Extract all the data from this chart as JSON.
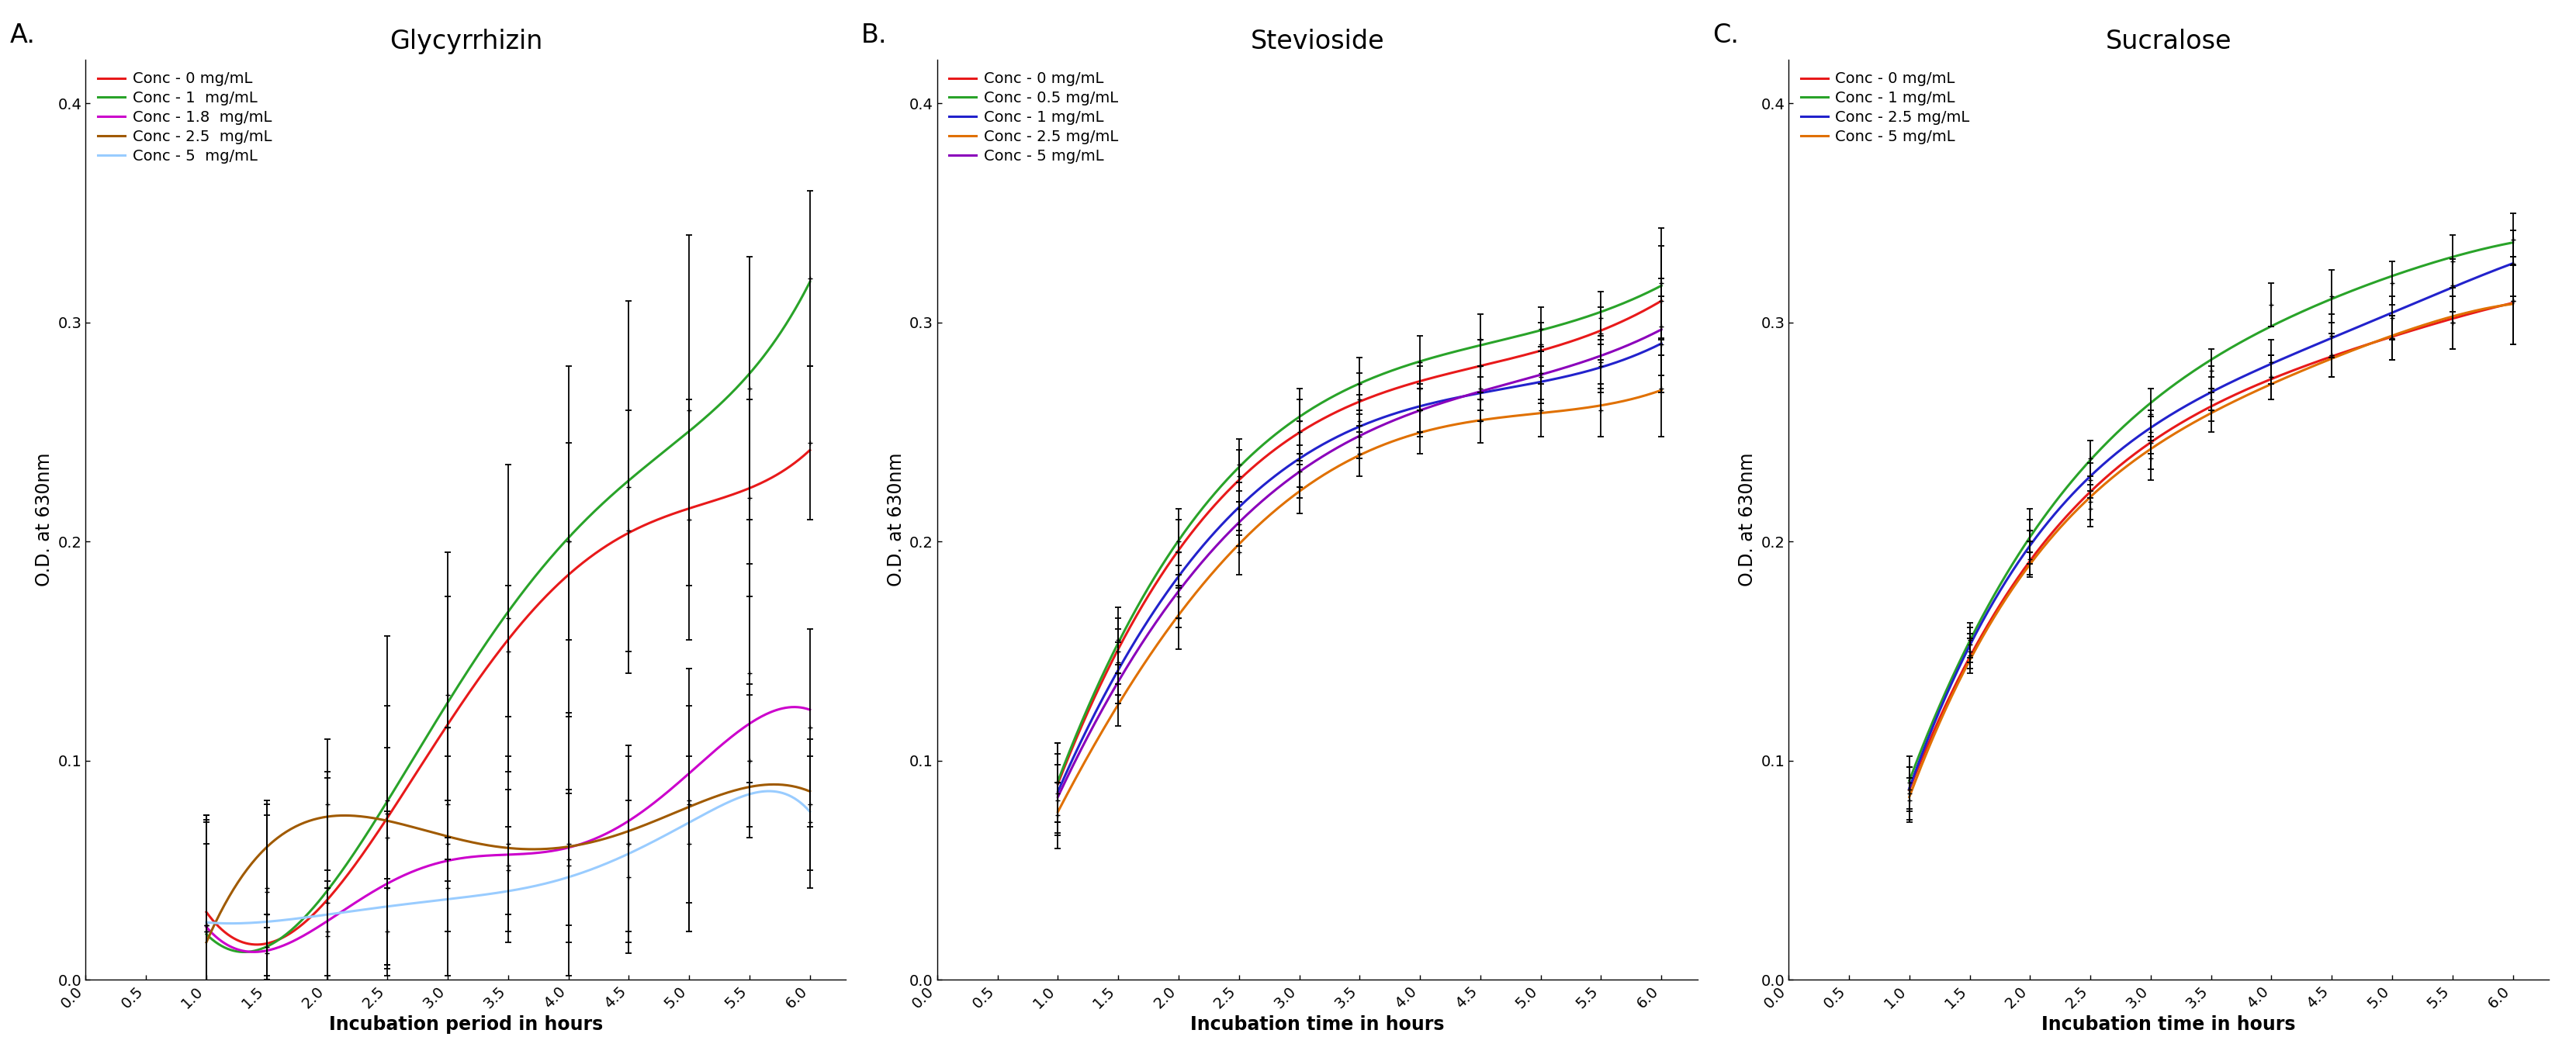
{
  "panel_A": {
    "title": "Glycyrrhizin",
    "xlabel": "Incubation period in hours",
    "ylabel": "O.D. at 630nm",
    "label": "A.",
    "x": [
      1.0,
      1.5,
      2.0,
      2.5,
      3.0,
      3.5,
      4.0,
      4.5,
      5.0,
      5.5,
      6.0
    ],
    "series": [
      {
        "label": "Conc - 0 mg/mL",
        "color": "#e8191a",
        "y": [
          0.025,
          0.03,
          0.035,
          0.065,
          0.115,
          0.15,
          0.2,
          0.205,
          0.21,
          0.22,
          0.245
        ],
        "yerr": [
          0.05,
          0.045,
          0.06,
          0.06,
          0.06,
          0.03,
          0.045,
          0.055,
          0.055,
          0.045,
          0.035
        ]
      },
      {
        "label": "Conc - 1  mg/mL",
        "color": "#29a329",
        "y": [
          0.022,
          0.012,
          0.042,
          0.082,
          0.13,
          0.165,
          0.2,
          0.225,
          0.26,
          0.27,
          0.32
        ],
        "yerr": [
          0.05,
          0.012,
          0.05,
          0.075,
          0.065,
          0.07,
          0.08,
          0.085,
          0.08,
          0.06,
          0.04
        ]
      },
      {
        "label": "Conc - 1.8  mg/mL",
        "color": "#cc00cc",
        "y": [
          0.025,
          0.015,
          0.02,
          0.042,
          0.062,
          0.062,
          0.062,
          0.062,
          0.082,
          0.14,
          0.115
        ],
        "yerr": [
          0.05,
          0.015,
          0.025,
          0.035,
          0.04,
          0.04,
          0.06,
          0.045,
          0.06,
          0.05,
          0.045
        ]
      },
      {
        "label": "Conc - 2.5  mg/mL",
        "color": "#a05a00",
        "y": [
          0.025,
          0.042,
          0.08,
          0.076,
          0.08,
          0.052,
          0.055,
          0.062,
          0.08,
          0.1,
          0.08
        ],
        "yerr": [
          0.048,
          0.04,
          0.03,
          0.03,
          0.035,
          0.035,
          0.03,
          0.04,
          0.045,
          0.03,
          0.03
        ]
      },
      {
        "label": "Conc - 5  mg/mL",
        "color": "#99ccff",
        "y": [
          0.022,
          0.04,
          0.022,
          0.022,
          0.042,
          0.05,
          0.052,
          0.047,
          0.062,
          0.1,
          0.072
        ],
        "yerr": [
          0.04,
          0.04,
          0.02,
          0.02,
          0.04,
          0.02,
          0.035,
          0.035,
          0.04,
          0.035,
          0.03
        ]
      }
    ]
  },
  "panel_B": {
    "title": "Stevioside",
    "xlabel": "Incubation time in hours",
    "ylabel": "O.D. at 630nm",
    "label": "B.",
    "x": [
      1.0,
      1.5,
      2.0,
      2.5,
      3.0,
      3.5,
      4.0,
      4.5,
      5.0,
      5.5,
      6.0
    ],
    "series": [
      {
        "label": "Conc - 0 mg/mL",
        "color": "#e8191a",
        "y": [
          0.09,
          0.15,
          0.195,
          0.23,
          0.25,
          0.265,
          0.27,
          0.28,
          0.29,
          0.295,
          0.31
        ],
        "yerr": [
          0.018,
          0.015,
          0.015,
          0.012,
          0.015,
          0.012,
          0.01,
          0.012,
          0.01,
          0.012,
          0.025
        ]
      },
      {
        "label": "Conc - 0.5 mg/mL",
        "color": "#29a329",
        "y": [
          0.09,
          0.155,
          0.2,
          0.235,
          0.255,
          0.272,
          0.282,
          0.292,
          0.297,
          0.302,
          0.318
        ],
        "yerr": [
          0.018,
          0.015,
          0.015,
          0.012,
          0.015,
          0.012,
          0.012,
          0.012,
          0.01,
          0.012,
          0.025
        ]
      },
      {
        "label": "Conc - 1 mg/mL",
        "color": "#2222cc",
        "y": [
          0.085,
          0.145,
          0.18,
          0.215,
          0.24,
          0.255,
          0.26,
          0.265,
          0.275,
          0.28,
          0.29
        ],
        "yerr": [
          0.018,
          0.015,
          0.015,
          0.012,
          0.015,
          0.012,
          0.012,
          0.01,
          0.012,
          0.012,
          0.022
        ]
      },
      {
        "label": "Conc - 2.5 mg/mL",
        "color": "#e07000",
        "y": [
          0.075,
          0.13,
          0.165,
          0.195,
          0.225,
          0.24,
          0.25,
          0.255,
          0.26,
          0.26,
          0.27
        ],
        "yerr": [
          0.015,
          0.014,
          0.014,
          0.01,
          0.012,
          0.01,
          0.01,
          0.01,
          0.012,
          0.012,
          0.022
        ]
      },
      {
        "label": "Conc - 5 mg/mL",
        "color": "#8B00BB",
        "y": [
          0.082,
          0.14,
          0.175,
          0.208,
          0.232,
          0.248,
          0.26,
          0.27,
          0.277,
          0.282,
          0.298
        ],
        "yerr": [
          0.016,
          0.014,
          0.014,
          0.01,
          0.012,
          0.01,
          0.01,
          0.01,
          0.012,
          0.012,
          0.022
        ]
      }
    ]
  },
  "panel_C": {
    "title": "Sucralose",
    "xlabel": "Incubation time in hours",
    "ylabel": "O.D. at 630nm",
    "label": "C.",
    "x": [
      1.0,
      1.5,
      2.0,
      2.5,
      3.0,
      3.5,
      4.0,
      4.5,
      5.0,
      5.5,
      6.0
    ],
    "series": [
      {
        "label": "Conc - 0 mg/mL",
        "color": "#e8191a",
        "y": [
          0.085,
          0.15,
          0.195,
          0.215,
          0.245,
          0.265,
          0.275,
          0.285,
          0.293,
          0.3,
          0.31
        ],
        "yerr": [
          0.012,
          0.008,
          0.01,
          0.008,
          0.012,
          0.01,
          0.01,
          0.01,
          0.01,
          0.012,
          0.02
        ]
      },
      {
        "label": "Conc - 1 mg/mL",
        "color": "#29a329",
        "y": [
          0.09,
          0.155,
          0.205,
          0.238,
          0.258,
          0.278,
          0.308,
          0.312,
          0.318,
          0.328,
          0.338
        ],
        "yerr": [
          0.012,
          0.008,
          0.01,
          0.008,
          0.012,
          0.01,
          0.01,
          0.012,
          0.01,
          0.012,
          0.012
        ]
      },
      {
        "label": "Conc - 2.5 mg/mL",
        "color": "#2222cc",
        "y": [
          0.087,
          0.153,
          0.2,
          0.228,
          0.25,
          0.27,
          0.282,
          0.294,
          0.302,
          0.317,
          0.327
        ],
        "yerr": [
          0.01,
          0.008,
          0.01,
          0.008,
          0.01,
          0.01,
          0.01,
          0.01,
          0.01,
          0.012,
          0.015
        ]
      },
      {
        "label": "Conc - 5 mg/mL",
        "color": "#e07000",
        "y": [
          0.082,
          0.148,
          0.192,
          0.218,
          0.238,
          0.26,
          0.275,
          0.285,
          0.293,
          0.3,
          0.31
        ],
        "yerr": [
          0.01,
          0.008,
          0.008,
          0.008,
          0.01,
          0.01,
          0.01,
          0.01,
          0.01,
          0.012,
          0.02
        ]
      }
    ]
  },
  "ylim": [
    0.0,
    0.42
  ],
  "yticks": [
    0.0,
    0.1,
    0.2,
    0.3,
    0.4
  ],
  "xlim": [
    0.0,
    6.3
  ],
  "xticks": [
    0.0,
    0.5,
    1.0,
    1.5,
    2.0,
    2.5,
    3.0,
    3.5,
    4.0,
    4.5,
    5.0,
    5.5,
    6.0
  ],
  "bg_color": "#ffffff",
  "panel_label_fontsize": 24,
  "title_fontsize": 24,
  "axis_label_fontsize": 17,
  "tick_fontsize": 14,
  "legend_fontsize": 14,
  "linewidth": 2.2,
  "elinewidth": 1.3,
  "capsize": 3
}
